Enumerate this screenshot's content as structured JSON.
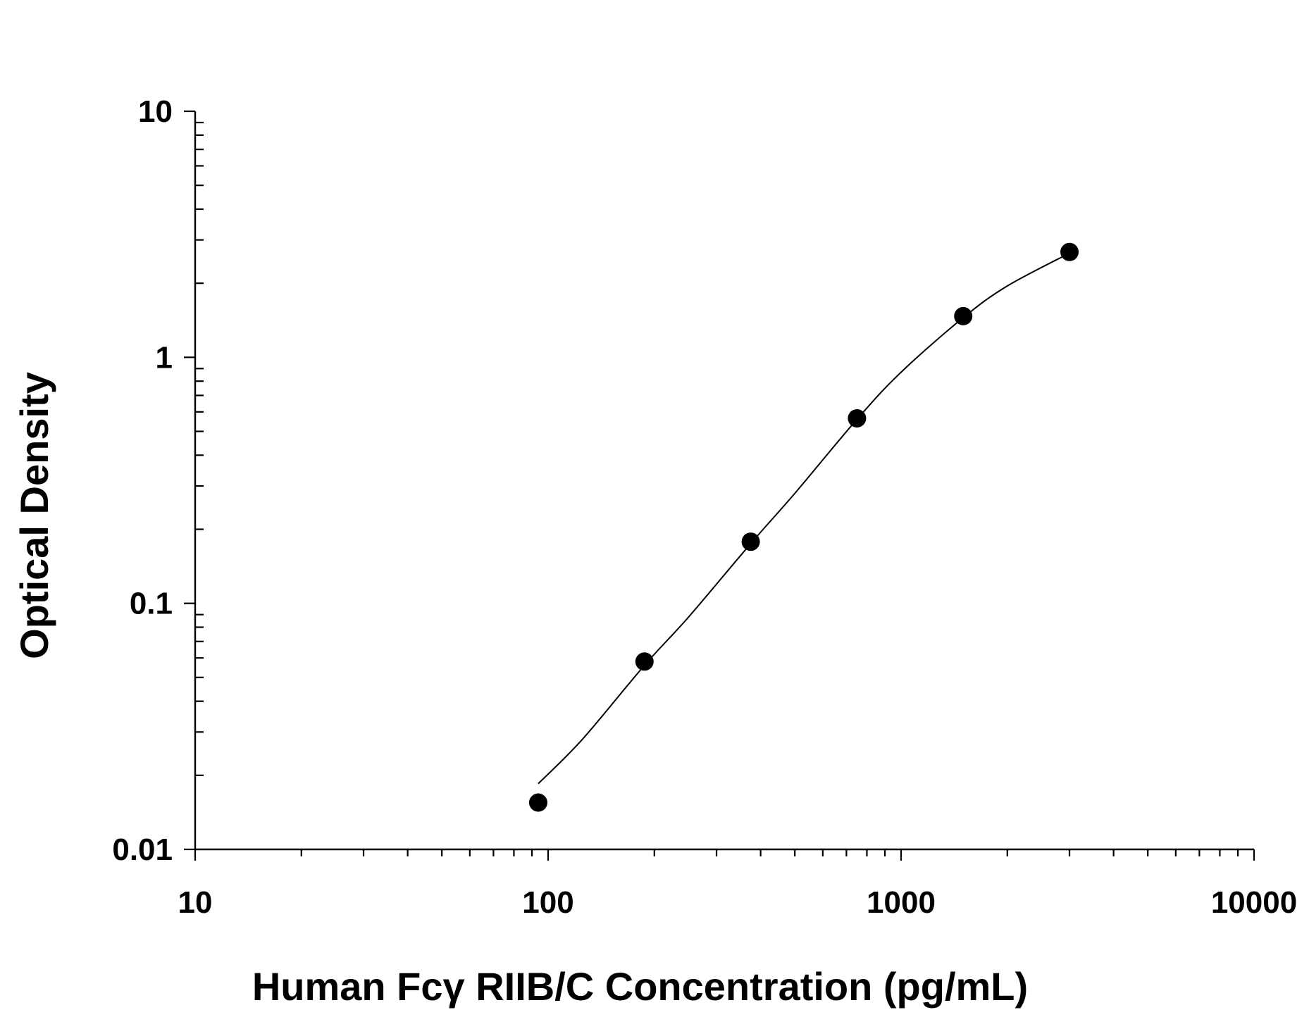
{
  "chart_data": {
    "type": "scatter",
    "title": "",
    "xlabel": "Human Fcγ RIIB/C Concentration (pg/mL)",
    "ylabel": "Optical Density",
    "x_scale": "log",
    "y_scale": "log",
    "xlim": [
      10,
      10000
    ],
    "ylim": [
      0.01,
      10
    ],
    "x_ticks": [
      {
        "value": 10,
        "label": "10"
      },
      {
        "value": 100,
        "label": "100"
      },
      {
        "value": 1000,
        "label": "1000"
      },
      {
        "value": 10000,
        "label": "10000"
      }
    ],
    "y_ticks": [
      {
        "value": 0.01,
        "label": "0.01"
      },
      {
        "value": 0.1,
        "label": "0.1"
      },
      {
        "value": 1,
        "label": "1"
      },
      {
        "value": 10,
        "label": "10"
      }
    ],
    "grid": false,
    "legend": "none",
    "series": [
      {
        "x": [
          93.75,
          187.5,
          375,
          750,
          1500,
          3000
        ],
        "y": [
          0.0155,
          0.058,
          0.178,
          0.565,
          1.47,
          2.68
        ],
        "marker": "filled-circle",
        "color": "#000000"
      }
    ],
    "fit_curve": {
      "x": [
        93.75,
        125,
        187.5,
        250,
        375,
        500,
        750,
        1000,
        1500,
        2000,
        3000
      ],
      "y": [
        0.0185,
        0.028,
        0.056,
        0.088,
        0.175,
        0.28,
        0.56,
        0.87,
        1.45,
        1.95,
        2.65
      ],
      "color": "#000000"
    }
  }
}
